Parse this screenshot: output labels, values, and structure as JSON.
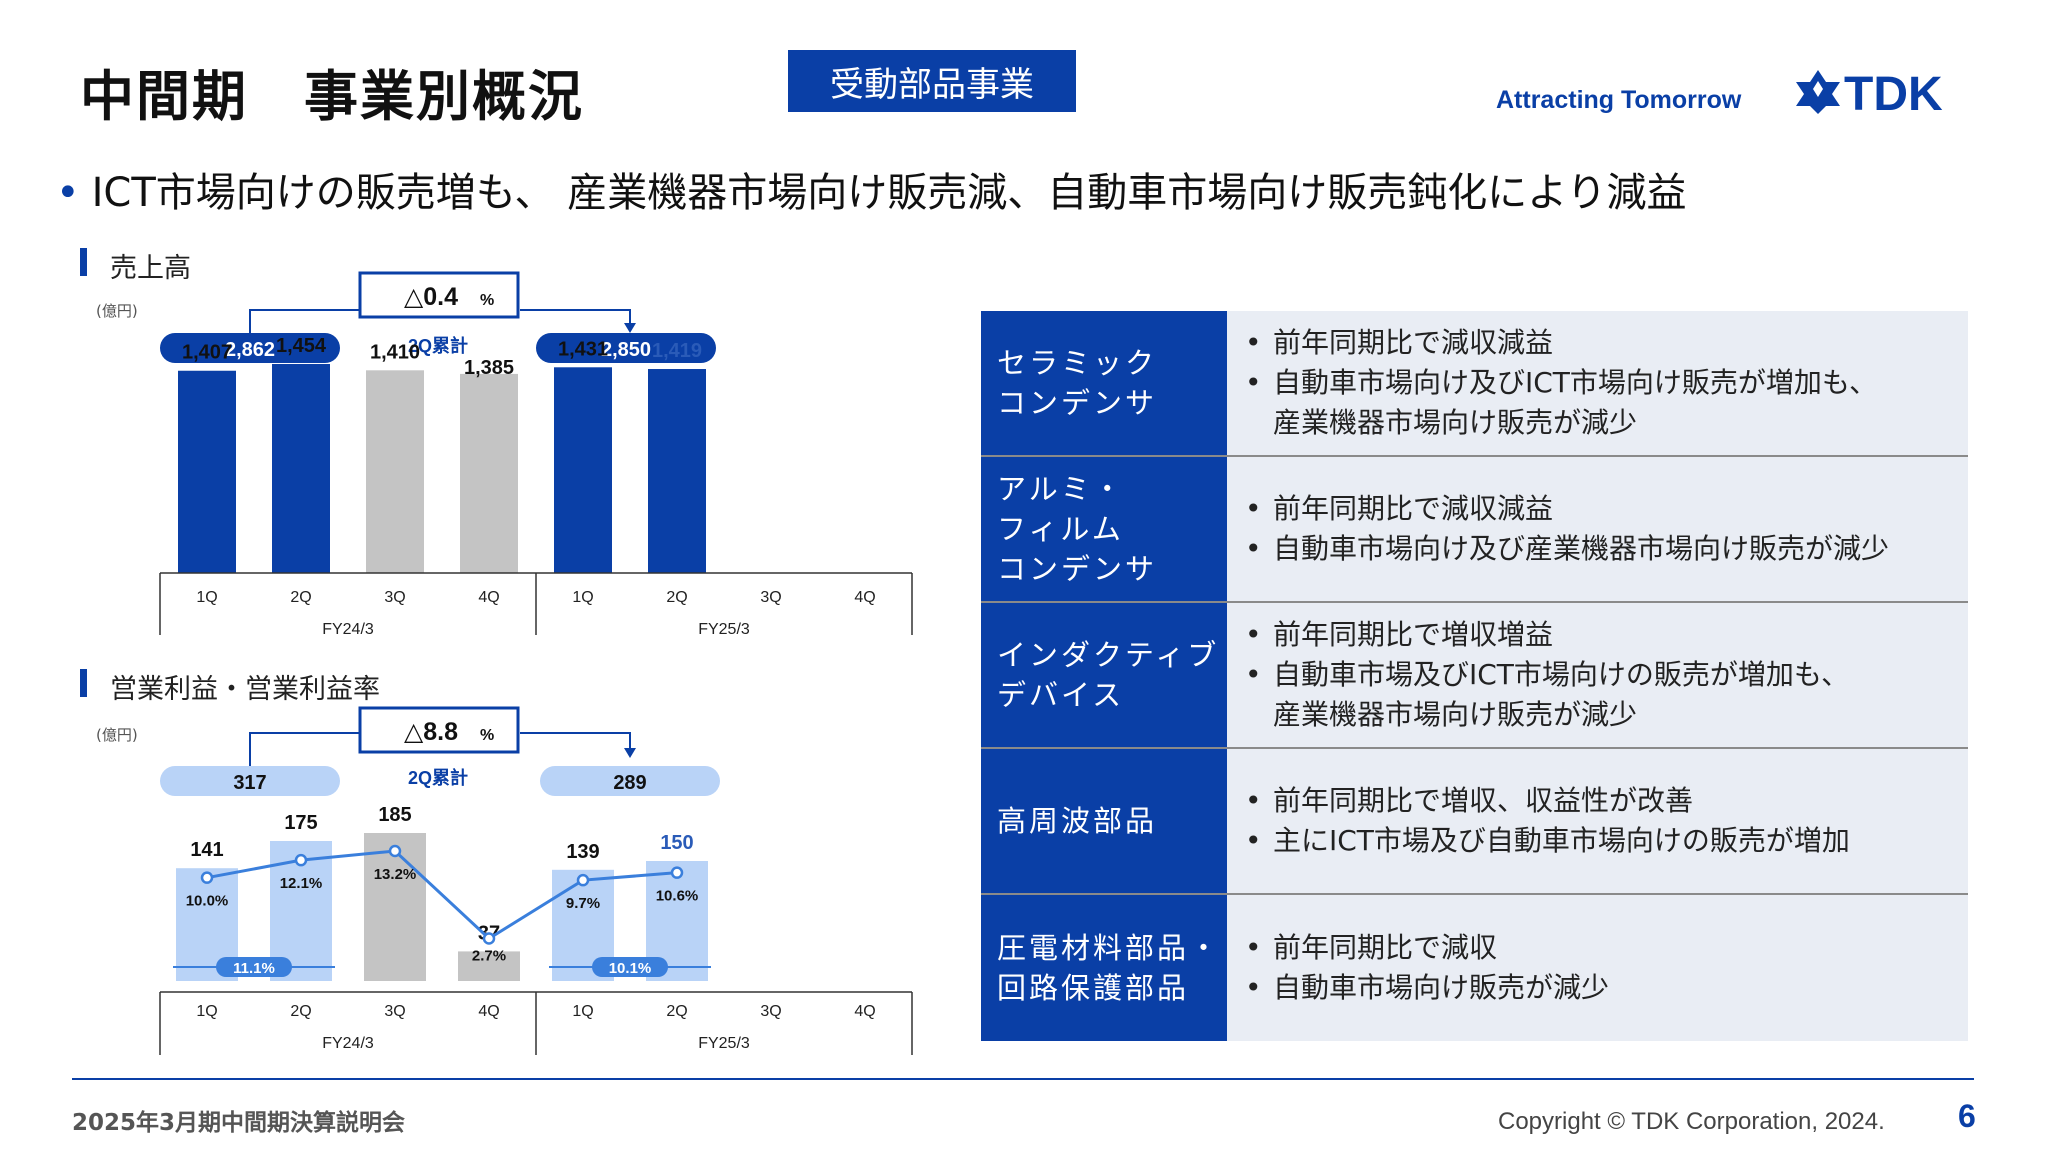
{
  "header": {
    "title": "中間期　事業別概況",
    "segment": "受動部品事業",
    "tagline": "Attracting Tomorrow",
    "logo_text": "TDK",
    "summary": "ICT市場向けの販売増も、 産業機器市場向け販売減、自動車市場向け販売鈍化により減益"
  },
  "sales_section": {
    "label": "売上高",
    "unit": "(億円)",
    "change": "△0.4",
    "change_unit": "%",
    "cumulative_label": "2Q累計",
    "prev_total": "2,862",
    "curr_total": "2,850"
  },
  "op_section": {
    "label": "営業利益・営業利益率",
    "unit": "(億円)",
    "change": "△8.8",
    "change_unit": "%",
    "cumulative_label": "2Q累計",
    "prev_total": "317",
    "curr_total": "289",
    "prev_avg_margin": "11.1%",
    "curr_avg_margin": "10.1%"
  },
  "chart_data": [
    {
      "type": "bar",
      "title": "売上高",
      "categories": [
        "1Q",
        "2Q",
        "3Q",
        "4Q",
        "1Q",
        "2Q",
        "3Q",
        "4Q"
      ],
      "groups": [
        "FY24/3",
        "FY25/3"
      ],
      "values": [
        1407,
        1454,
        1410,
        1385,
        1431,
        1419,
        null,
        null
      ],
      "labels": [
        "1,407",
        "1,454",
        "1,410",
        "1,385",
        "1,431",
        "1,419",
        "",
        ""
      ],
      "ylim": [
        0,
        1600
      ],
      "colors": [
        "#0a3fa6",
        "#0a3fa6",
        "#c4c4c4",
        "#c4c4c4",
        "#0a3fa6",
        "#0a3fa6"
      ]
    },
    {
      "type": "bar",
      "title": "営業利益・営業利益率",
      "categories": [
        "1Q",
        "2Q",
        "3Q",
        "4Q",
        "1Q",
        "2Q",
        "3Q",
        "4Q"
      ],
      "groups": [
        "FY24/3",
        "FY25/3"
      ],
      "values": [
        141,
        175,
        185,
        37,
        139,
        150,
        null,
        null
      ],
      "labels": [
        "141",
        "175",
        "185",
        "37",
        "139",
        "150",
        "",
        ""
      ],
      "ylim": [
        0,
        200
      ],
      "colors": [
        "#b9d3f7",
        "#b9d3f7",
        "#c4c4c4",
        "#c4c4c4",
        "#b9d3f7",
        "#b9d3f7"
      ],
      "margin_series": {
        "values": [
          10.0,
          12.1,
          13.2,
          2.7,
          9.7,
          10.6,
          null,
          null
        ],
        "labels": [
          "10.0%",
          "12.1%",
          "13.2%",
          "2.7%",
          "9.7%",
          "10.6%",
          "",
          ""
        ],
        "color": "#3a7fdc"
      }
    }
  ],
  "table": {
    "rows": [
      {
        "head": "セラミック\nコンデンサ",
        "bullets": [
          "前年同期比で減収減益",
          "自動車市場向け及びICT市場向け販売が増加も、\n産業機器市場向け販売が減少"
        ]
      },
      {
        "head": "アルミ・\nフィルム\nコンデンサ",
        "bullets": [
          "前年同期比で減収減益",
          "自動車市場向け及び産業機器市場向け販売が減少"
        ]
      },
      {
        "head": "インダクティブ\nデバイス",
        "bullets": [
          "前年同期比で増収増益",
          "自動車市場及びICT市場向けの販売が増加も、\n産業機器市場向け販売が減少"
        ]
      },
      {
        "head": "高周波部品",
        "bullets": [
          "前年同期比で増収、収益性が改善",
          "主にICT市場及び自動車市場向けの販売が増加"
        ]
      },
      {
        "head": "圧電材料部品・\n回路保護部品",
        "bullets": [
          "前年同期比で減収",
          "自動車市場向け販売が減少"
        ]
      }
    ]
  },
  "footer": {
    "event": "2025年3月期中間期決算説明会",
    "copyright": "Copyright © TDK Corporation, 2024.",
    "page": "6"
  },
  "colors": {
    "brand": "#0a3fa6",
    "light_blue": "#b9d3f7",
    "gray_bar": "#c4c4c4",
    "line": "#3a7fdc",
    "table_bg": "#e9edf4"
  }
}
